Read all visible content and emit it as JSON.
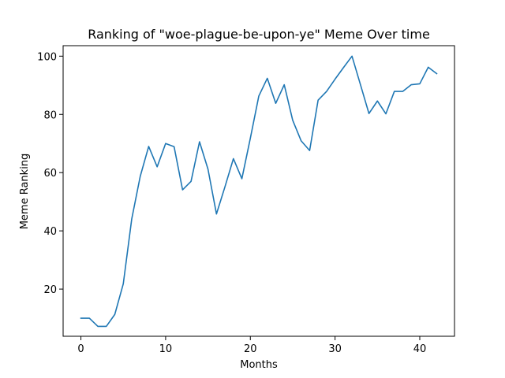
{
  "chart_data": {
    "type": "line",
    "title": "Ranking of \"woe-plague-be-upon-ye\" Meme Over time",
    "xlabel": "Months",
    "ylabel": "Meme Ranking",
    "xlim": [
      -2.1,
      44.1
    ],
    "ylim": [
      3.8,
      103.6
    ],
    "xticks": [
      0,
      10,
      20,
      30,
      40
    ],
    "yticks": [
      20,
      40,
      60,
      80,
      100
    ],
    "grid": false,
    "legend": "none",
    "series": [
      {
        "color": "#1f77b4",
        "x": [
          0,
          1,
          2,
          3,
          4,
          5,
          6,
          7,
          8,
          9,
          10,
          11,
          12,
          13,
          14,
          15,
          16,
          17,
          18,
          19,
          20,
          21,
          22,
          23,
          24,
          25,
          26,
          27,
          28,
          29,
          30,
          31,
          32,
          33,
          34,
          35,
          36,
          37,
          38,
          39,
          40,
          41,
          42
        ],
        "y": [
          10,
          10,
          7.2,
          7.2,
          11.3,
          21.8,
          44.1,
          58.7,
          69,
          62,
          70,
          68.9,
          54.1,
          57,
          70.6,
          61.2,
          45.8,
          55.1,
          64.8,
          57.9,
          71.8,
          86.3,
          92.4,
          83.8,
          90.2,
          78,
          70.9,
          67.6,
          84.9,
          87.9,
          92.1,
          96.1,
          100,
          90.2,
          80.3,
          84.6,
          80.2,
          87.9,
          87.9,
          90.2,
          90.5,
          96.2,
          94
        ]
      }
    ]
  }
}
